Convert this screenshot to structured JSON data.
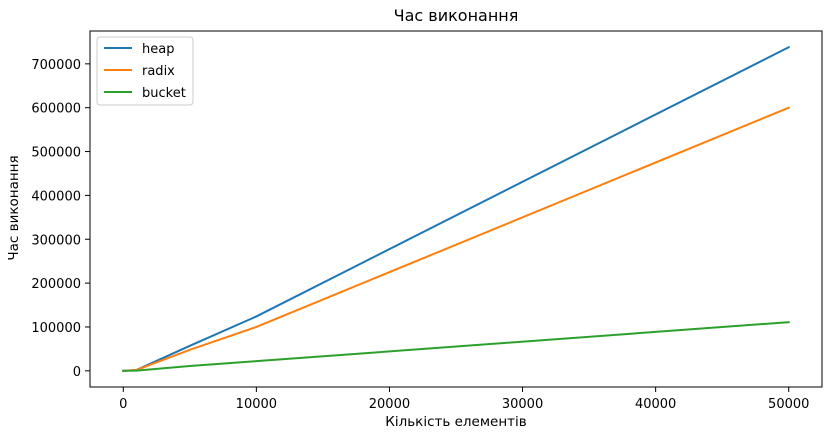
{
  "chart_data": {
    "type": "line",
    "title": "Час виконання",
    "xlabel": "Кількість елементів",
    "ylabel": "Час виконання",
    "x": [
      0,
      1000,
      5000,
      10000,
      50000
    ],
    "series": [
      {
        "name": "heap",
        "color": "#1f77b4",
        "values": [
          0,
          2000,
          57000,
          124000,
          738000
        ]
      },
      {
        "name": "radix",
        "color": "#ff7f0e",
        "values": [
          0,
          2000,
          48000,
          100000,
          600000
        ]
      },
      {
        "name": "bucket",
        "color": "#2ca02c",
        "values": [
          0,
          500,
          11000,
          22000,
          111000
        ]
      }
    ],
    "xlim": [
      -2500,
      52500
    ],
    "ylim": [
      -36900,
      774900
    ],
    "xticks": [
      0,
      10000,
      20000,
      30000,
      40000,
      50000
    ],
    "yticks": [
      0,
      100000,
      200000,
      300000,
      400000,
      500000,
      600000,
      700000
    ],
    "grid": false,
    "legend_position": "top-left"
  }
}
